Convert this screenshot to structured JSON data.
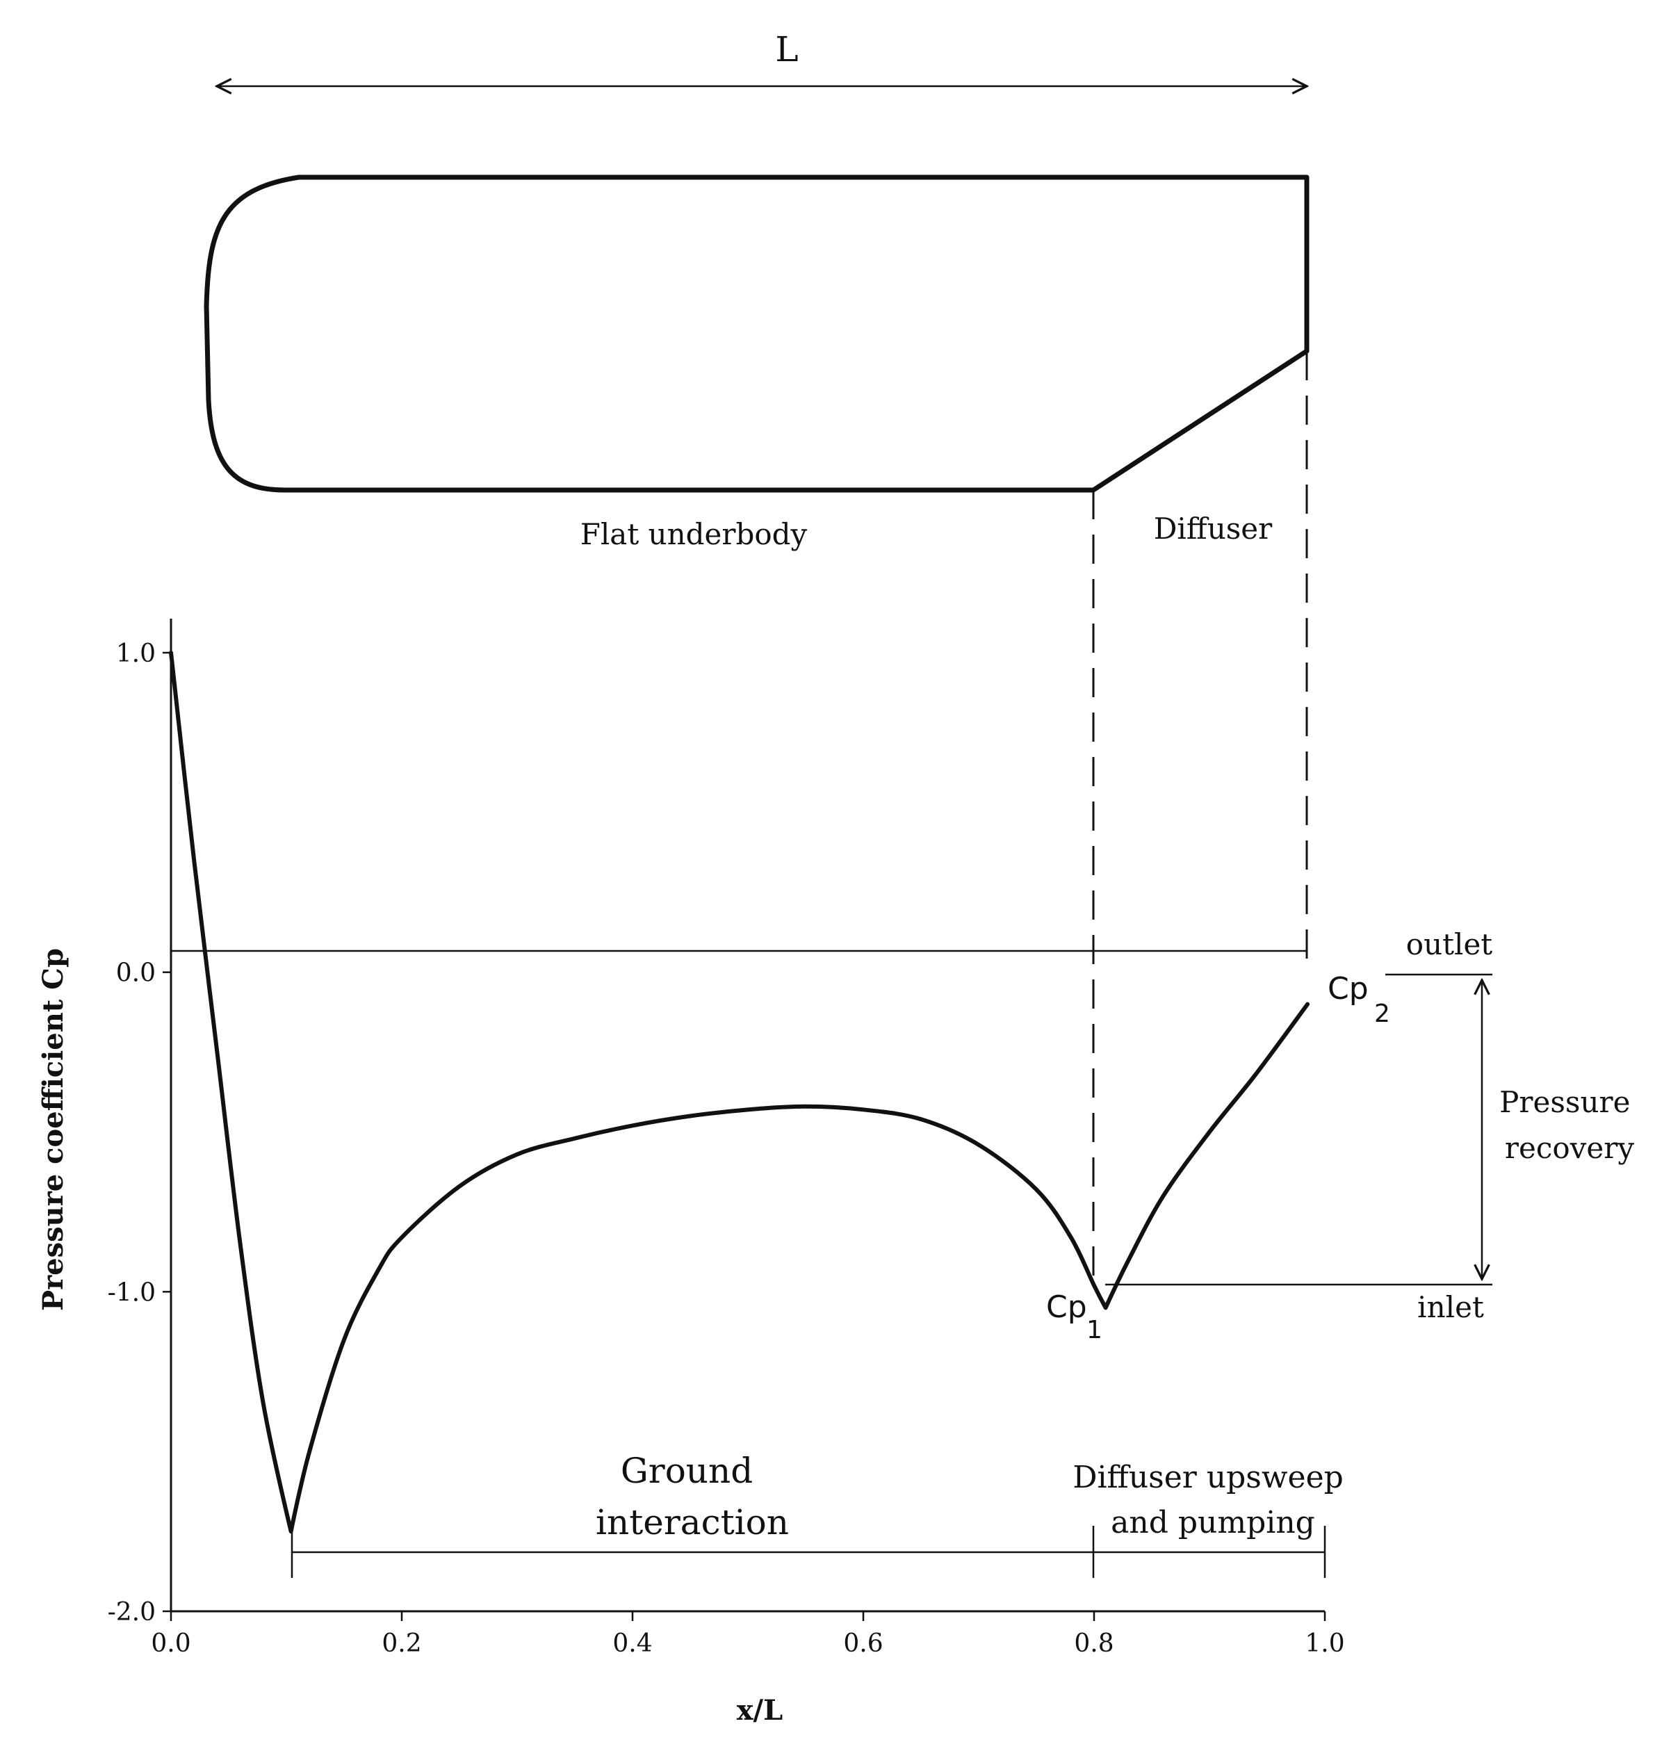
{
  "diagram": {
    "length_label": "L",
    "region_labels": {
      "flat_underbody": "Flat underbody",
      "diffuser": "Diffuser"
    }
  },
  "annotations": {
    "cp2": {
      "base": "Cp",
      "sub": "2"
    },
    "cp1": {
      "base": "Cp",
      "sub": "1"
    },
    "outlet": "outlet",
    "inlet": "inlet",
    "pressure_recovery": [
      "Pressure",
      "recovery"
    ],
    "ground_interaction": [
      "Ground",
      "interaction"
    ],
    "diffuser_upsweep": [
      "Diffuser upsweep",
      "and pumping"
    ]
  },
  "chart_data": {
    "type": "line",
    "title": "",
    "xlabel": "x/L",
    "ylabel": "Pressure coefficient Cp",
    "xlim": [
      0.0,
      1.0
    ],
    "ylim": [
      -2.0,
      1.0
    ],
    "x_ticks": [
      "0.0",
      "0.2",
      "0.4",
      "0.6",
      "0.8",
      "1.0"
    ],
    "y_ticks": [
      "1.0",
      "0.0",
      "-1.0",
      "-2.0"
    ],
    "series": [
      {
        "x": [
          0.0,
          0.02,
          0.04,
          0.06,
          0.08,
          0.104,
          0.12,
          0.15,
          0.18,
          0.2,
          0.25,
          0.3,
          0.35,
          0.4,
          0.45,
          0.5,
          0.55,
          0.6,
          0.65,
          0.7,
          0.75,
          0.78,
          0.8,
          0.81,
          0.83,
          0.86,
          0.9,
          0.94,
          0.985
        ],
        "values": [
          1.0,
          0.35,
          -0.25,
          -0.85,
          -1.35,
          -1.75,
          -1.5,
          -1.15,
          -0.93,
          -0.83,
          -0.67,
          -0.57,
          -0.52,
          -0.48,
          -0.45,
          -0.43,
          -0.42,
          -0.43,
          -0.46,
          -0.54,
          -0.68,
          -0.83,
          -0.98,
          -1.05,
          -0.9,
          -0.7,
          -0.5,
          -0.32,
          -0.1
        ]
      }
    ],
    "reference_lines": [
      0.0
    ],
    "grid": false
  }
}
